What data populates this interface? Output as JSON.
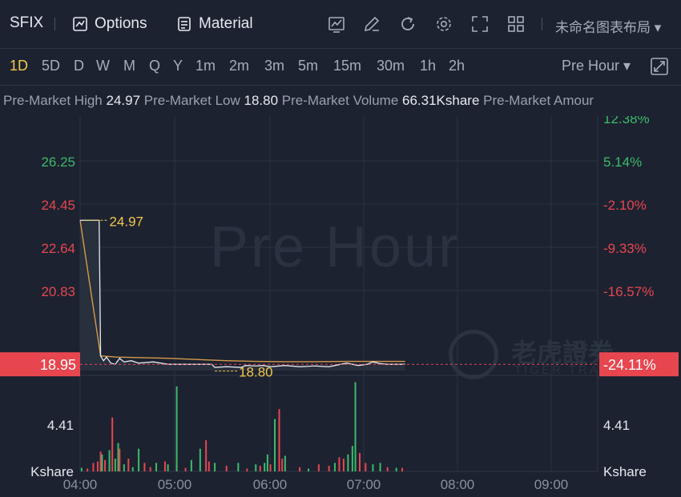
{
  "toolbar": {
    "symbol": "SFIX",
    "options_label": "Options",
    "material_label": "Material",
    "layout_name": "未命名图表布局 ▾",
    "tools": [
      "chart-icon",
      "edit-icon",
      "refresh-icon",
      "settings-icon",
      "fullscreen-icon",
      "grid-icon"
    ]
  },
  "periods": [
    "1D",
    "5D",
    "D",
    "W",
    "M",
    "Q",
    "Y",
    "1m",
    "2m",
    "3m",
    "5m",
    "15m",
    "30m",
    "1h",
    "2h"
  ],
  "active_period": "1D",
  "session_select": "Pre Hour ▾",
  "info": [
    {
      "label": "Pre-Market High",
      "value": "24.97"
    },
    {
      "label": "Pre-Market Low",
      "value": "18.80"
    },
    {
      "label": "Pre-Market Volume",
      "value": "66.31Kshare"
    },
    {
      "label": "Pre-Market Amour",
      "value": ""
    }
  ],
  "watermark": "Pre Hour",
  "brand_cn": "老虎證券",
  "brand_en": "TIGER TRADE",
  "colors": {
    "up": "#3dbb6a",
    "down": "#e8464f",
    "accent": "#f2c94c",
    "avg": "#d79a4a",
    "price": "#e6e9ef",
    "bg": "#1c2230"
  },
  "chart_data": {
    "type": "line",
    "x_ticks": [
      "04:00",
      "05:00",
      "06:00",
      "07:00",
      "08:00",
      "09:00"
    ],
    "price_ticks": [
      "26.25",
      "24.45",
      "22.64",
      "20.83"
    ],
    "pct_ticks": [
      "12.38%",
      "5.14%",
      "-2.10%",
      "-9.33%",
      "-16.57%"
    ],
    "pct_colors": [
      "up",
      "up",
      "down",
      "down",
      "down"
    ],
    "price_tick_colors": [
      "up",
      "down",
      "down",
      "down"
    ],
    "current_price": "18.95",
    "current_pct": "-24.11%",
    "high_label": "24.97",
    "low_label": "18.80",
    "ylim": [
      17.0,
      27.0
    ],
    "xlim_minutes": [
      0,
      330
    ],
    "price": [
      [
        0,
        24.97
      ],
      [
        13,
        24.97
      ],
      [
        14,
        19.3
      ],
      [
        16,
        19.1
      ],
      [
        18,
        19.25
      ],
      [
        21,
        19.0
      ],
      [
        24,
        18.95
      ],
      [
        27,
        19.2
      ],
      [
        30,
        19.05
      ],
      [
        35,
        19.1
      ],
      [
        40,
        19.0
      ],
      [
        50,
        19.05
      ],
      [
        60,
        18.95
      ],
      [
        70,
        18.95
      ],
      [
        80,
        18.95
      ],
      [
        90,
        18.95
      ],
      [
        92,
        18.82
      ],
      [
        100,
        18.85
      ],
      [
        110,
        18.82
      ],
      [
        113,
        18.9
      ],
      [
        120,
        18.88
      ],
      [
        125,
        18.9
      ],
      [
        130,
        18.85
      ],
      [
        140,
        18.9
      ],
      [
        150,
        18.85
      ],
      [
        160,
        18.88
      ],
      [
        170,
        18.85
      ],
      [
        178,
        18.95
      ],
      [
        182,
        19.0
      ],
      [
        186,
        18.95
      ],
      [
        190,
        18.9
      ],
      [
        196,
        18.95
      ],
      [
        200,
        19.05
      ],
      [
        205,
        18.98
      ],
      [
        210,
        18.95
      ],
      [
        220,
        18.95
      ],
      [
        222,
        18.96
      ]
    ],
    "avg": [
      [
        0,
        24.97
      ],
      [
        14,
        19.3
      ],
      [
        25,
        19.25
      ],
      [
        40,
        19.23
      ],
      [
        60,
        19.2
      ],
      [
        80,
        19.15
      ],
      [
        100,
        19.1
      ],
      [
        120,
        19.07
      ],
      [
        140,
        19.06
      ],
      [
        160,
        19.06
      ],
      [
        180,
        19.07
      ],
      [
        200,
        19.07
      ],
      [
        222,
        19.07
      ]
    ],
    "volume_label": "4.41",
    "volume_unit": "Kshare",
    "volume_max": 6.5,
    "volume": [
      [
        1,
        0.25,
        "up"
      ],
      [
        5,
        0.2,
        "down"
      ],
      [
        9,
        0.6,
        "down"
      ],
      [
        12,
        0.7,
        "down"
      ],
      [
        14,
        1.4,
        "down"
      ],
      [
        15,
        1.2,
        "up"
      ],
      [
        17,
        0.8,
        "down"
      ],
      [
        20,
        1.5,
        "up"
      ],
      [
        22,
        3.8,
        "down"
      ],
      [
        24,
        0.9,
        "up"
      ],
      [
        26,
        2.0,
        "up"
      ],
      [
        27,
        1.6,
        "down"
      ],
      [
        30,
        0.5,
        "up"
      ],
      [
        33,
        0.9,
        "down"
      ],
      [
        36,
        0.3,
        "up"
      ],
      [
        40,
        1.6,
        "up"
      ],
      [
        44,
        0.6,
        "down"
      ],
      [
        48,
        0.3,
        "down"
      ],
      [
        52,
        0.6,
        "up"
      ],
      [
        58,
        0.7,
        "down"
      ],
      [
        60,
        0.5,
        "up"
      ],
      [
        66,
        6.0,
        "up"
      ],
      [
        72,
        0.25,
        "down"
      ],
      [
        76,
        0.8,
        "up"
      ],
      [
        82,
        1.6,
        "up"
      ],
      [
        86,
        2.2,
        "down"
      ],
      [
        88,
        0.7,
        "down"
      ],
      [
        92,
        0.6,
        "up"
      ],
      [
        100,
        0.4,
        "down"
      ],
      [
        108,
        0.6,
        "up"
      ],
      [
        114,
        0.2,
        "down"
      ],
      [
        120,
        0.5,
        "up"
      ],
      [
        123,
        0.4,
        "down"
      ],
      [
        126,
        0.6,
        "up"
      ],
      [
        128,
        1.2,
        "up"
      ],
      [
        130,
        0.5,
        "down"
      ],
      [
        133,
        3.7,
        "up"
      ],
      [
        136,
        4.4,
        "down"
      ],
      [
        138,
        0.9,
        "down"
      ],
      [
        140,
        1.1,
        "up"
      ],
      [
        150,
        0.3,
        "down"
      ],
      [
        156,
        0.2,
        "up"
      ],
      [
        163,
        0.5,
        "down"
      ],
      [
        170,
        0.4,
        "down"
      ],
      [
        174,
        0.6,
        "up"
      ],
      [
        177,
        1.0,
        "down"
      ],
      [
        180,
        0.9,
        "down"
      ],
      [
        183,
        1.2,
        "up"
      ],
      [
        186,
        1.8,
        "up"
      ],
      [
        188,
        6.3,
        "up"
      ],
      [
        191,
        1.3,
        "down"
      ],
      [
        195,
        0.6,
        "down"
      ],
      [
        200,
        0.5,
        "up"
      ],
      [
        205,
        0.6,
        "up"
      ],
      [
        210,
        0.3,
        "down"
      ],
      [
        216,
        0.25,
        "up"
      ],
      [
        220,
        0.25,
        "down"
      ]
    ]
  }
}
